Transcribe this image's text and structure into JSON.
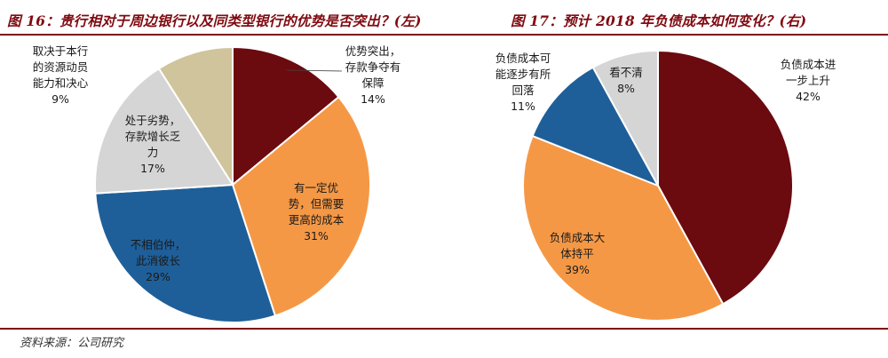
{
  "header": {
    "left_title": "图 16：贵行相对于周边银行以及同类型银行的优势是否突出？(左)",
    "right_title": "图 17：预计 2018 年负债成本如何变化？(右)"
  },
  "footer": {
    "source": "资料来源：公司研究"
  },
  "colors": {
    "dark_red": "#6b0a0f",
    "orange": "#f59845",
    "blue": "#1f5f99",
    "light_grey": "#d5d5d5",
    "tan": "#cfc49c",
    "title_red": "#7f0a10"
  },
  "chart_data": [
    {
      "type": "pie",
      "title": "贵行相对于周边银行以及同类型银行的优势是否突出？",
      "slices": [
        {
          "lines": [
            "优势突出，",
            "存款争夺有",
            "保障"
          ],
          "pct_label": "14%",
          "value": 14,
          "color": "#6b0a0f"
        },
        {
          "lines": [
            "有一定优",
            "势，但需要",
            "更高的成本"
          ],
          "pct_label": "31%",
          "value": 31,
          "color": "#f59845"
        },
        {
          "lines": [
            "不相伯仲，",
            "此消彼长"
          ],
          "pct_label": "29%",
          "value": 29,
          "color": "#1f5f99"
        },
        {
          "lines": [
            "处于劣势，",
            "存款增长乏",
            "力"
          ],
          "pct_label": "17%",
          "value": 17,
          "color": "#d5d5d5"
        },
        {
          "lines": [
            "取决于本行",
            "的资源动员",
            "能力和决心"
          ],
          "pct_label": "9%",
          "value": 9,
          "color": "#cfc49c"
        }
      ]
    },
    {
      "type": "pie",
      "title": "预计 2018 年负债成本如何变化？",
      "slices": [
        {
          "lines": [
            "负债成本进",
            "一步上升"
          ],
          "pct_label": "42%",
          "value": 42,
          "color": "#6b0a0f"
        },
        {
          "lines": [
            "负债成本大",
            "体持平"
          ],
          "pct_label": "39%",
          "value": 39,
          "color": "#f59845"
        },
        {
          "lines": [
            "负债成本可",
            "能逐步有所",
            "回落"
          ],
          "pct_label": "11%",
          "value": 11,
          "color": "#1f5f99"
        },
        {
          "lines": [
            "看不清"
          ],
          "pct_label": "8%",
          "value": 8,
          "color": "#d5d5d5"
        }
      ]
    }
  ]
}
